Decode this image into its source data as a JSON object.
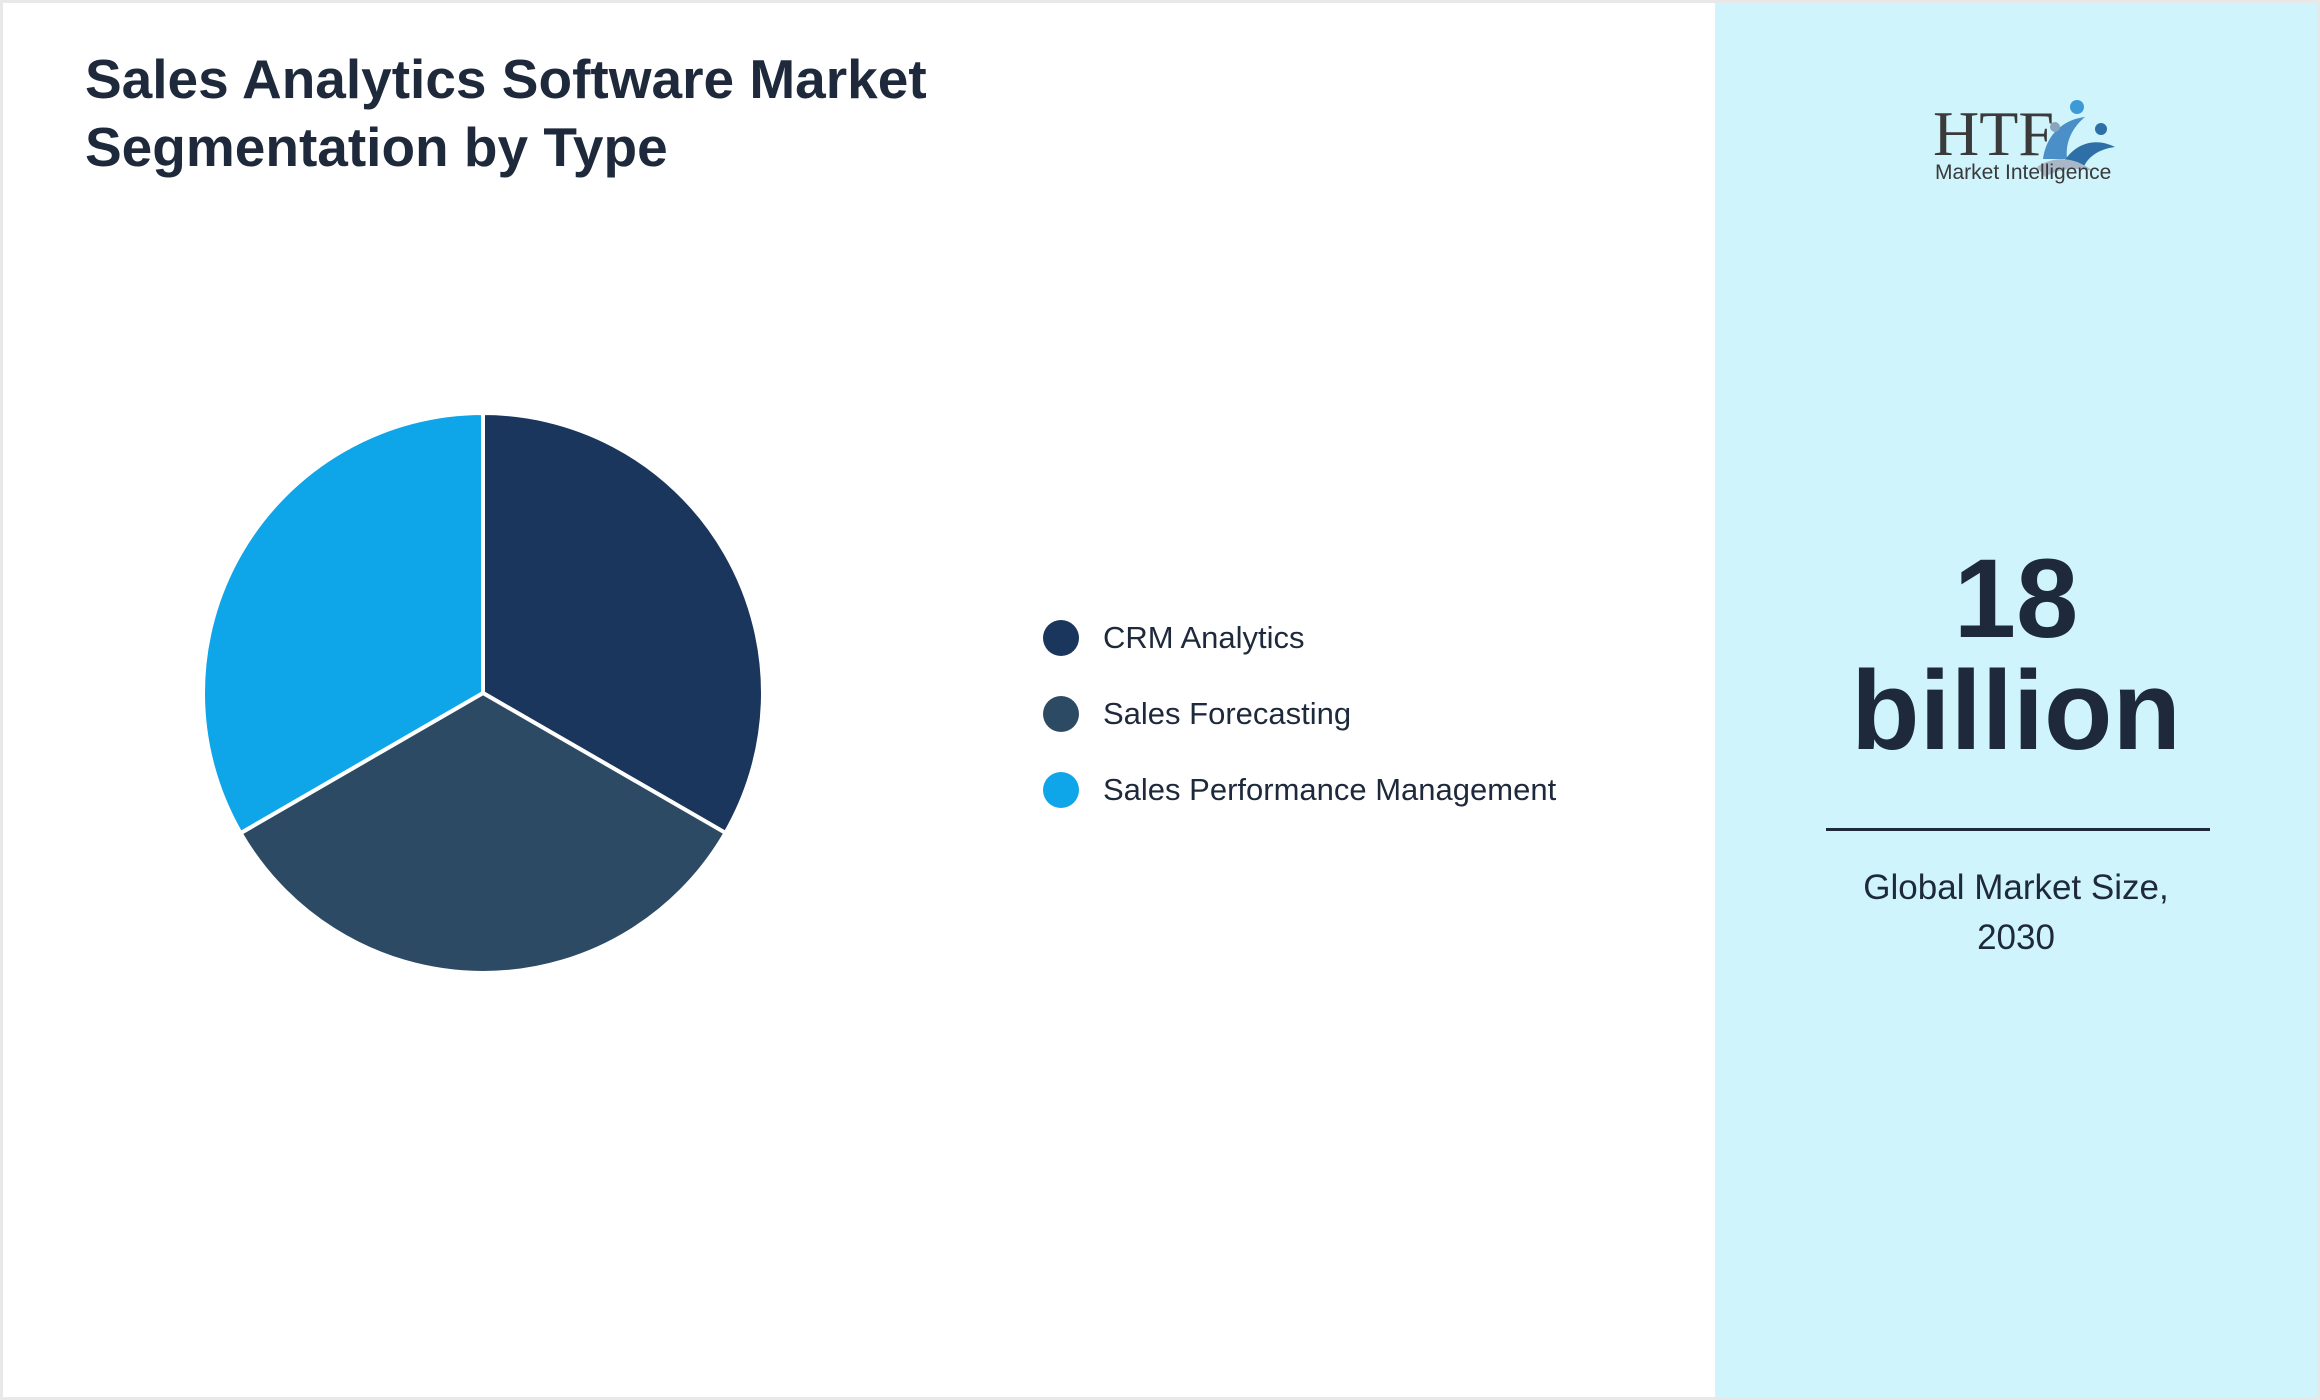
{
  "title_line1": "Sales Analytics Software Market",
  "title_line2": "Segmentation by Type",
  "chart_data": {
    "type": "pie",
    "title": "Sales Analytics Software Market Segmentation by Type",
    "legend_position": "right",
    "slices": [
      {
        "label": "CRM Analytics",
        "value": 33.33,
        "color": "#1b365d"
      },
      {
        "label": "Sales Forecasting",
        "value": 33.33,
        "color": "#2d4a65"
      },
      {
        "label": "Sales Performance Management",
        "value": 33.34,
        "color": "#0ea5e9"
      }
    ]
  },
  "logo": {
    "text": "HTF",
    "subtext": "Market Intelligence"
  },
  "stat": {
    "value_line1": "18",
    "value_line2": "billion",
    "caption_line1": "Global Market Size,",
    "caption_line2": "2030"
  },
  "colors": {
    "panel": "#cff4fc",
    "text": "#1e293b"
  }
}
